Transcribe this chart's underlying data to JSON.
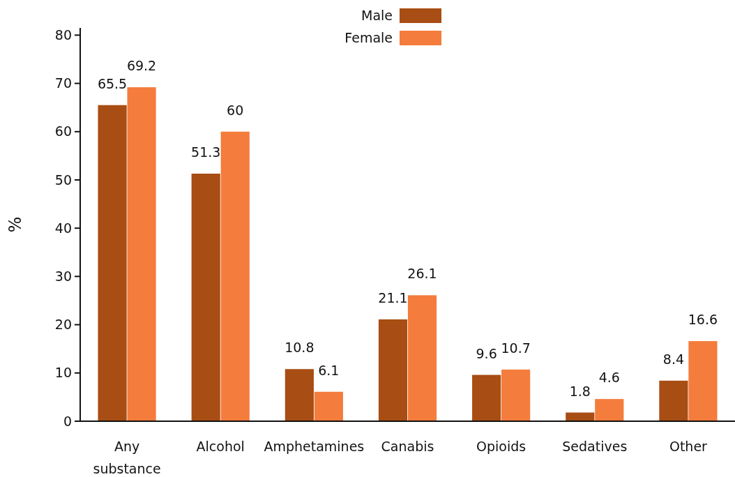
{
  "chart_data": {
    "type": "bar",
    "ylabel": "%",
    "categories": [
      "Any substance",
      "Alcohol",
      "Amphetamines",
      "Canabis",
      "Opioids",
      "Sedatives",
      "Other"
    ],
    "series": [
      {
        "name": "Male",
        "color": "#a84d13",
        "values": [
          65.5,
          51.3,
          10.8,
          21.1,
          9.6,
          1.8,
          8.4
        ]
      },
      {
        "name": "Female",
        "color": "#f47c3c",
        "values": [
          69.2,
          60,
          6.1,
          26.1,
          10.7,
          4.6,
          16.6
        ]
      }
    ],
    "ylim": [
      0,
      81.5
    ],
    "yticks": [
      0,
      10,
      20,
      30,
      40,
      50,
      60,
      70,
      80
    ],
    "grid": false,
    "legend": "top",
    "data_labels": true
  }
}
